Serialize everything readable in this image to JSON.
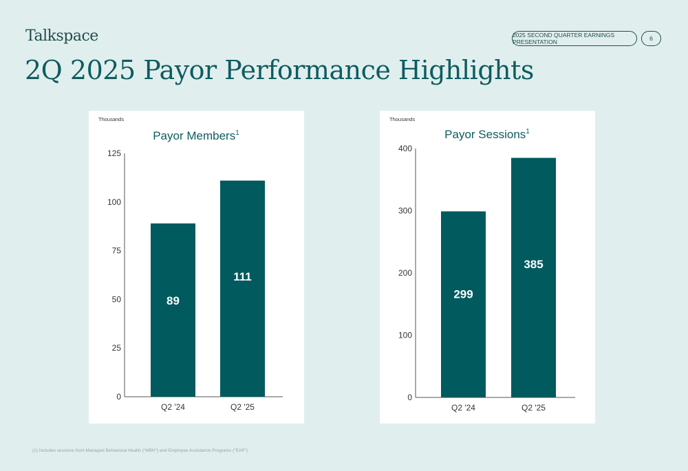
{
  "header": {
    "logo": "Talkspace",
    "presentation_label": "2025 SECOND QUARTER EARNINGS PRESENTATION",
    "page_number": "6",
    "title": "2Q 2025 Payor Performance Highlights"
  },
  "colors": {
    "accent": "#005a5e",
    "title": "#0d5c5f",
    "background": "#e1eeee"
  },
  "chart_data": [
    {
      "type": "bar",
      "title": "Payor Members",
      "title_sup": "1",
      "unit_label": "Thousands",
      "categories": [
        "Q2 '24",
        "Q2 '25"
      ],
      "values": [
        89,
        111
      ],
      "data_labels": [
        "89",
        "111"
      ],
      "ylim": [
        0,
        125
      ],
      "yticks": [
        0,
        25,
        50,
        75,
        100,
        125
      ],
      "grid": false,
      "legend": "none"
    },
    {
      "type": "bar",
      "title": "Payor Sessions",
      "title_sup": "1",
      "unit_label": "Thousands",
      "categories": [
        "Q2 '24",
        "Q2 '25"
      ],
      "values": [
        299,
        385
      ],
      "data_labels": [
        "299",
        "385"
      ],
      "ylim": [
        0,
        400
      ],
      "yticks": [
        0,
        100,
        200,
        300,
        400
      ],
      "grid": false,
      "legend": "none"
    }
  ],
  "footnote": "(1)     Includes sessions from Managed Behavioral Health (\"MBH\") and Employee Assistance Programs (\"EAP\")."
}
